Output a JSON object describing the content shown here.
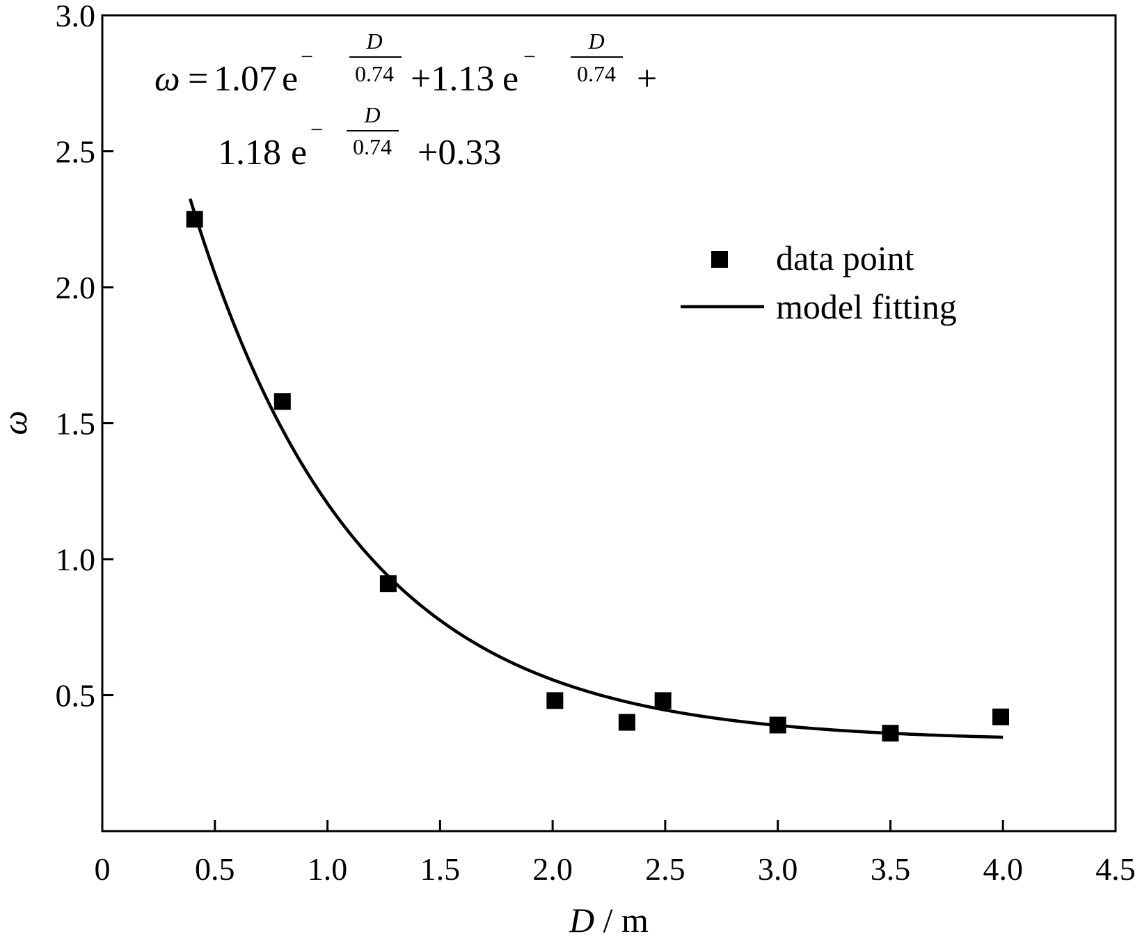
{
  "chart_data": {
    "type": "scatter",
    "title": "",
    "xlabel_var": "D",
    "xlabel_sep": "/",
    "xlabel_unit": "m",
    "ylabel": "ω",
    "xlim": [
      0,
      4.5
    ],
    "ylim": [
      0,
      3.0
    ],
    "x_ticks": [
      0,
      0.5,
      1.0,
      1.5,
      2.0,
      2.5,
      3.0,
      3.5,
      4.0,
      4.5
    ],
    "x_tick_labels": [
      "0",
      "0.5",
      "1.0",
      "1.5",
      "2.0",
      "2.5",
      "3.0",
      "3.5",
      "4.0",
      "4.5"
    ],
    "y_ticks": [
      0.5,
      1.0,
      1.5,
      2.0,
      2.5,
      3.0
    ],
    "y_tick_labels": [
      "0.5",
      "1.0",
      "1.5",
      "2.0",
      "2.5",
      "3.0"
    ],
    "grid": false,
    "legend_position": "right",
    "legend": {
      "points_label": "data point",
      "line_label": "model fitting"
    },
    "series": [
      {
        "name": "data point",
        "kind": "scatter",
        "x": [
          0.41,
          0.8,
          1.27,
          2.01,
          2.33,
          2.49,
          3.0,
          3.5,
          3.99
        ],
        "y": [
          2.25,
          1.58,
          0.91,
          0.48,
          0.4,
          0.48,
          0.39,
          0.36,
          0.42
        ]
      },
      {
        "name": "model fitting",
        "kind": "line",
        "x_range": [
          0.39,
          4.0
        ],
        "model": {
          "coefficients": [
            1.07,
            1.13,
            1.18
          ],
          "scale": 0.74,
          "offset": 0.33
        }
      }
    ],
    "equation": {
      "lhs": "ω",
      "eq_sign": "=",
      "term1_coef": "1.07",
      "term2_coef": "+1.13",
      "term3_coef": "1.18",
      "exp_base": "e",
      "exp_sign": "−",
      "frac_num": "D",
      "frac_den": "0.74",
      "plus": "+",
      "tail": "+0.33"
    }
  }
}
